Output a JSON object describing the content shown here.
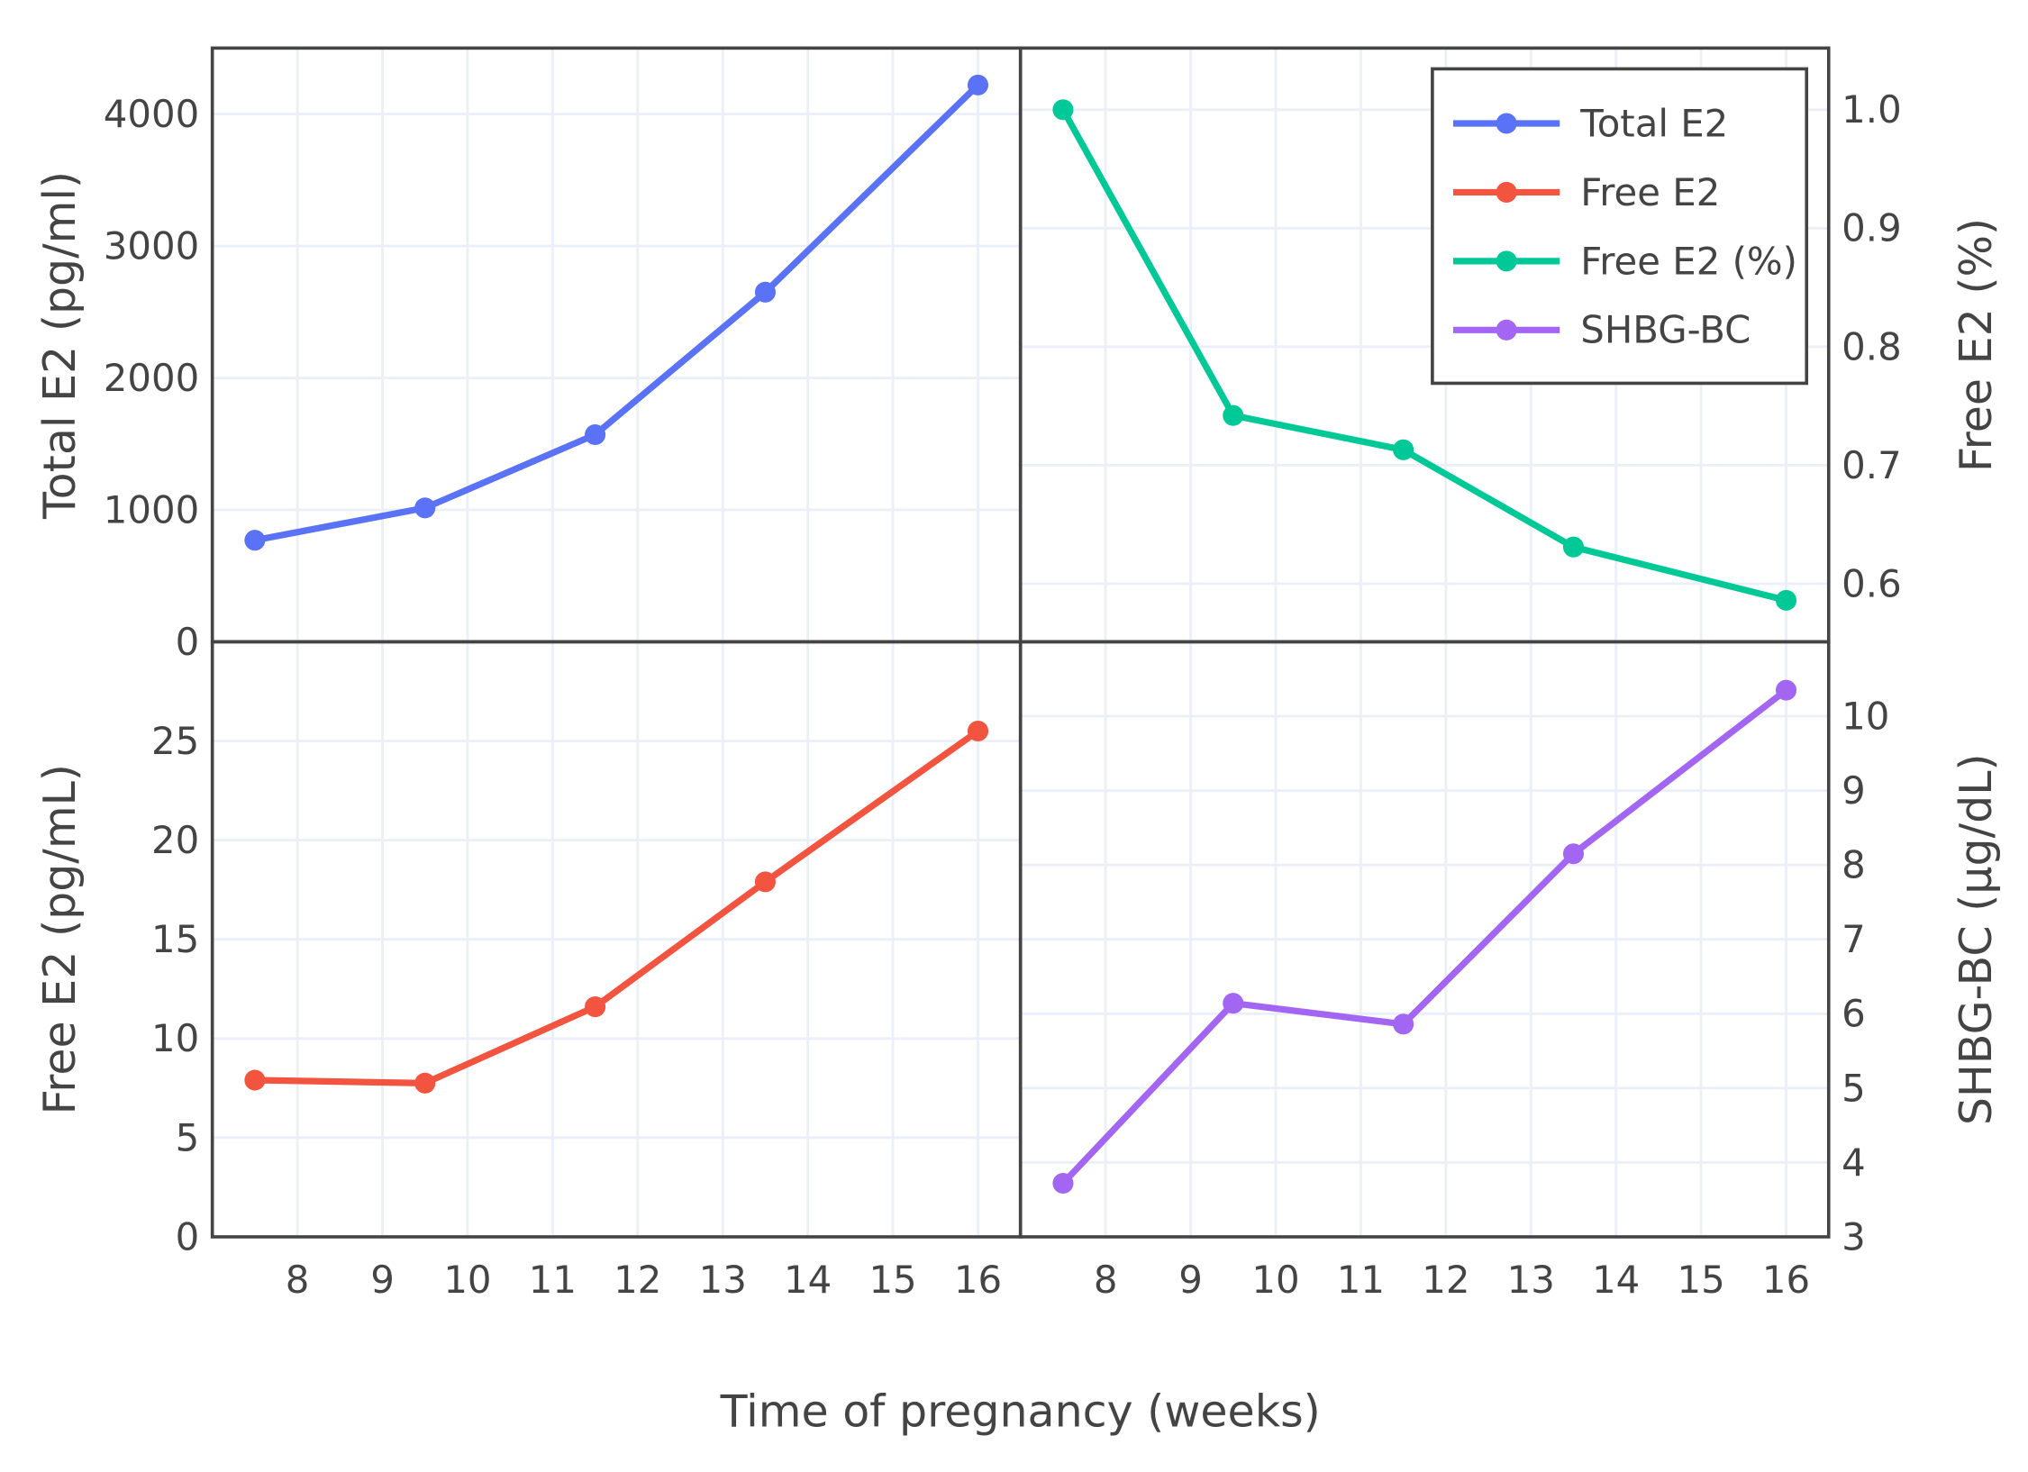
{
  "chart_data": {
    "type": "line",
    "xlabel": "Time of pregnancy (weeks)",
    "x": [
      7.5,
      9.5,
      11.5,
      13.5,
      16
    ],
    "xlim": [
      7,
      16.5
    ],
    "xticks": [
      8,
      9,
      10,
      11,
      12,
      13,
      14,
      15,
      16
    ],
    "grid": true,
    "legend_position": "top-right",
    "panels": [
      {
        "position": "top-left",
        "name": "Total E2",
        "ylabel": "Total E2 (pg/ml)",
        "color": "#5a72f5",
        "ylim": [
          0,
          4500
        ],
        "yticks": [
          0,
          1000,
          2000,
          3000,
          4000
        ],
        "axis_side": "left",
        "values": [
          770,
          1015,
          1570,
          2650,
          4220
        ]
      },
      {
        "position": "top-right",
        "name": "Free E2 (%)",
        "ylabel": "Free E2 (%)",
        "color": "#00c896",
        "ylim": [
          0.551,
          1.052
        ],
        "yticks": [
          0.6,
          0.7,
          0.8,
          0.9,
          1.0
        ],
        "tick_format": 1,
        "axis_side": "right",
        "values": [
          1.0,
          0.742,
          0.713,
          0.631,
          0.586
        ]
      },
      {
        "position": "bottom-left",
        "name": "Free E2",
        "ylabel": "Free E2 (pg/mL)",
        "color": "#f25440",
        "ylim": [
          0,
          30
        ],
        "yticks": [
          0,
          5,
          10,
          15,
          20,
          25
        ],
        "axis_side": "left",
        "values": [
          7.9,
          7.75,
          11.6,
          17.9,
          25.5
        ]
      },
      {
        "position": "bottom-right",
        "name": "SHBG-BC",
        "ylabel": "SHBG-BC (µg/dL)",
        "color": "#a366f2",
        "ylim": [
          3,
          11
        ],
        "yticks": [
          3,
          4,
          5,
          6,
          7,
          8,
          9,
          10
        ],
        "axis_side": "right",
        "values": [
          3.72,
          6.14,
          5.86,
          8.15,
          10.35
        ]
      }
    ],
    "legend": [
      "Total E2",
      "Free E2",
      "Free E2 (%)",
      "SHBG-BC"
    ]
  }
}
